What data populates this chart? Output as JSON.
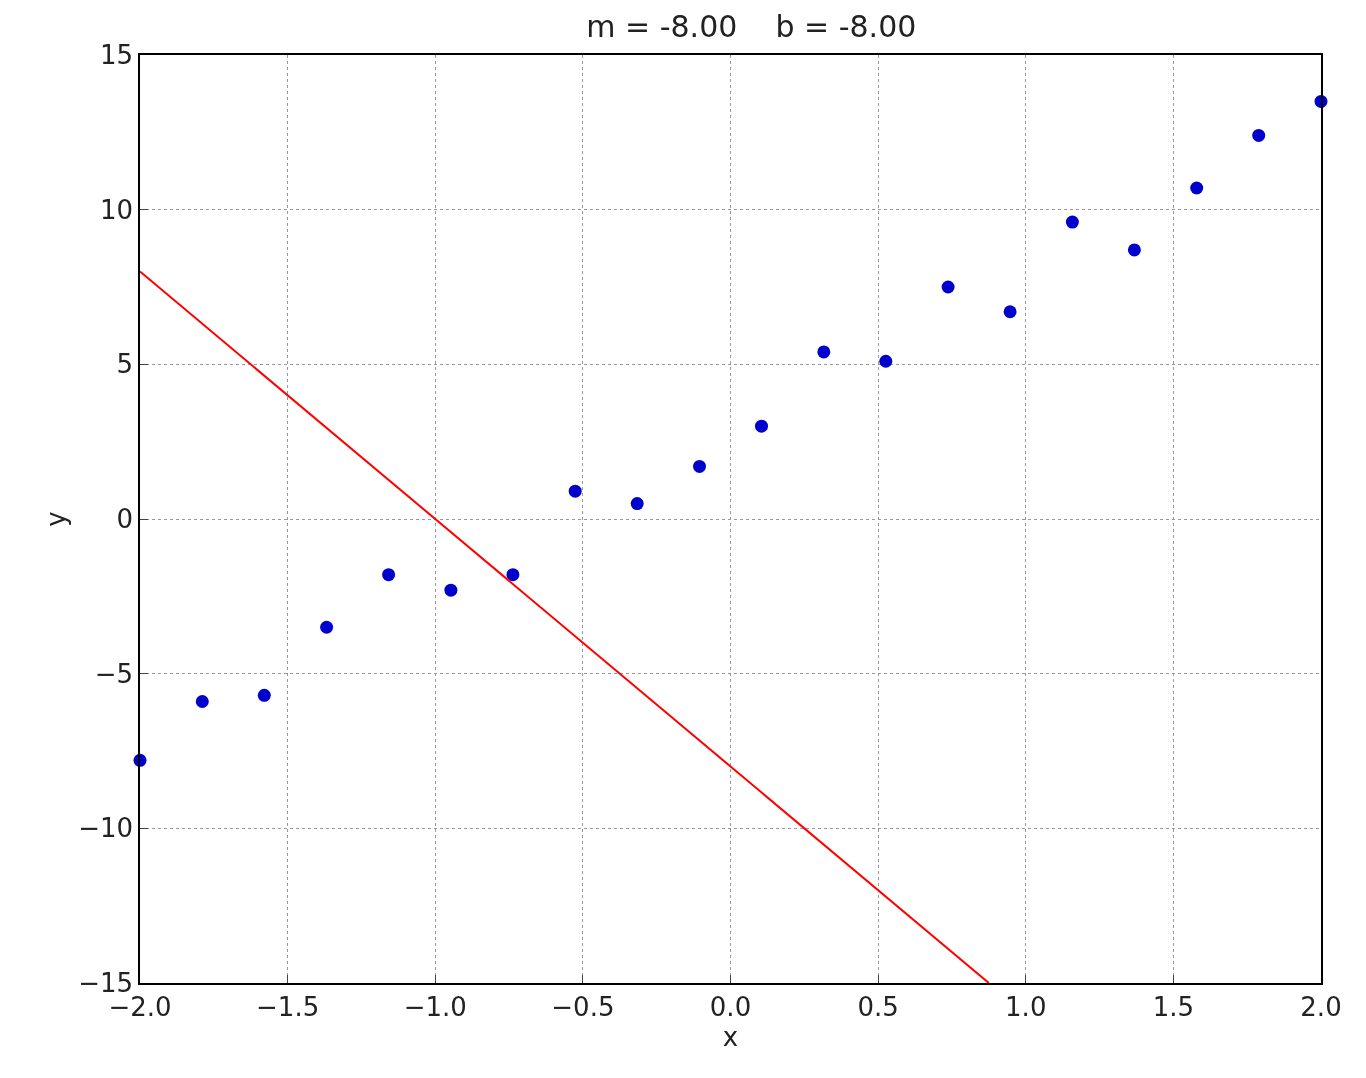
{
  "chart_data": {
    "type": "scatter",
    "title": "m = -8.00    b = -8.00",
    "xlabel": "x",
    "ylabel": "y",
    "series": [
      {
        "color": "#0000cc",
        "marker": "circle",
        "x": [
          -2,
          -1.789,
          -1.579,
          -1.368,
          -1.158,
          -0.947,
          -0.737,
          -0.526,
          -0.316,
          -0.105,
          0.105,
          0.316,
          0.526,
          0.737,
          0.947,
          1.158,
          1.368,
          1.579,
          1.789,
          2
        ],
        "values": [
          -7.8,
          -5.9,
          -5.7,
          -3.5,
          -1.8,
          -2.3,
          -1.8,
          0.9,
          0.5,
          1.7,
          3.0,
          5.4,
          5.1,
          7.5,
          6.7,
          9.6,
          8.7,
          10.7,
          12.4,
          13.5
        ]
      },
      {
        "type": "line",
        "color": "#ff0000",
        "line_style": "solid",
        "x": [
          -2,
          0.875
        ],
        "values": [
          8,
          -15
        ]
      }
    ],
    "xlim": [
      -2,
      2
    ],
    "ylim": [
      -15,
      15
    ],
    "xticks": [
      {
        "value": -2,
        "label": "−2.0"
      },
      {
        "value": -1.5,
        "label": "−1.5"
      },
      {
        "value": -1,
        "label": "−1.0"
      },
      {
        "value": -0.5,
        "label": "−0.5"
      },
      {
        "value": 0,
        "label": "0.0"
      },
      {
        "value": 0.5,
        "label": "0.5"
      },
      {
        "value": 1,
        "label": "1.0"
      },
      {
        "value": 1.5,
        "label": "1.5"
      },
      {
        "value": 2,
        "label": "2.0"
      }
    ],
    "yticks": [
      {
        "value": -15,
        "label": "−15"
      },
      {
        "value": -10,
        "label": "−10"
      },
      {
        "value": -5,
        "label": "−5"
      },
      0,
      5,
      10,
      15
    ],
    "grid": true
  }
}
